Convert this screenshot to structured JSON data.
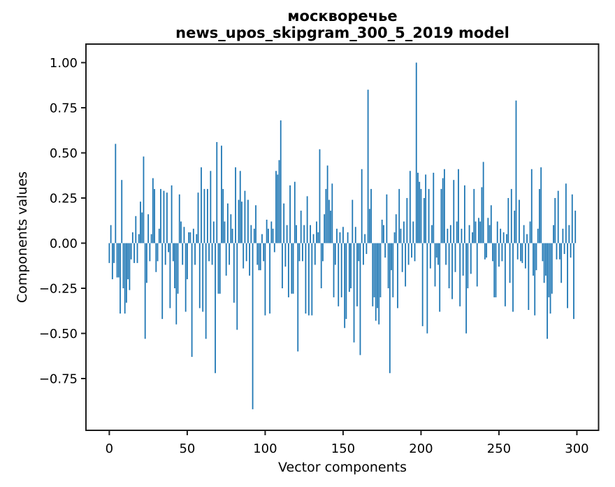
{
  "figure": {
    "title_line1": "москворечье",
    "title_line2": "news_upos_skipgram_300_5_2019 model",
    "xlabel": "Vector components",
    "ylabel": "Components values",
    "colors": {
      "bar": "#1f77b4",
      "spine": "#1c1c1c",
      "background": "#ffffff",
      "text": "#000000"
    }
  },
  "chart_data": {
    "type": "bar",
    "title": "москворечье — news_upos_skipgram_300_5_2019 model",
    "xlabel": "Vector components",
    "ylabel": "Components values",
    "legend": null,
    "grid": false,
    "n_components": 300,
    "xlim": [
      -15,
      314
    ],
    "ylim": [
      -1.04,
      1.1
    ],
    "x_ticks": [
      0,
      50,
      100,
      150,
      200,
      250,
      300
    ],
    "y_ticks": [
      1.0,
      0.75,
      0.5,
      0.25,
      0.0,
      -0.25,
      -0.5,
      -0.75
    ],
    "y_tick_labels": [
      "1.00",
      "0.75",
      "0.50",
      "0.25",
      "0.00",
      "−0.25",
      "−0.50",
      "−0.75"
    ],
    "bar_color": "#1f77b4",
    "values": [
      -0.11,
      0.1,
      -0.2,
      -0.11,
      0.55,
      -0.19,
      -0.19,
      -0.39,
      0.35,
      -0.25,
      -0.39,
      -0.33,
      -0.2,
      -0.26,
      -0.09,
      0.06,
      -0.11,
      0.15,
      -0.11,
      0.05,
      0.23,
      0.17,
      0.48,
      -0.53,
      -0.22,
      0.16,
      -0.1,
      0.05,
      0.36,
      0.3,
      -0.16,
      -0.1,
      0.08,
      0.3,
      -0.42,
      0.29,
      -0.12,
      0.28,
      -0.05,
      -0.36,
      0.32,
      -0.1,
      -0.25,
      -0.45,
      -0.28,
      0.27,
      0.12,
      -0.12,
      0.09,
      -0.38,
      -0.2,
      0.06,
      0.06,
      -0.63,
      0.08,
      -0.12,
      0.05,
      0.28,
      -0.36,
      0.42,
      -0.38,
      0.3,
      -0.53,
      0.3,
      -0.1,
      0.4,
      -0.12,
      0.12,
      -0.72,
      0.56,
      -0.28,
      -0.28,
      0.54,
      0.3,
      0.12,
      -0.18,
      0.22,
      -0.12,
      0.16,
      0.08,
      -0.33,
      0.42,
      -0.48,
      0.24,
      0.4,
      0.23,
      -0.14,
      0.29,
      -0.1,
      0.24,
      -0.18,
      0.1,
      -0.92,
      0.08,
      0.21,
      -0.12,
      -0.15,
      -0.15,
      0.05,
      -0.1,
      -0.4,
      0.13,
      0.08,
      -0.39,
      0.12,
      0.08,
      -0.05,
      0.4,
      0.38,
      0.46,
      0.68,
      -0.25,
      0.22,
      -0.13,
      0.1,
      -0.3,
      0.32,
      -0.28,
      -0.28,
      0.34,
      0.1,
      -0.6,
      -0.1,
      0.18,
      -0.1,
      0.1,
      -0.39,
      0.26,
      -0.4,
      0.1,
      -0.4,
      0.05,
      -0.12,
      0.12,
      0.06,
      0.52,
      -0.25,
      -0.1,
      0.16,
      0.3,
      0.43,
      0.24,
      0.18,
      0.33,
      -0.3,
      -0.12,
      0.08,
      -0.35,
      0.06,
      -0.3,
      0.09,
      -0.47,
      -0.42,
      0.06,
      -0.27,
      -0.25,
      0.24,
      -0.55,
      0.09,
      -0.35,
      -0.1,
      -0.62,
      0.41,
      -0.12,
      0.05,
      -0.06,
      0.85,
      0.19,
      0.3,
      -0.35,
      -0.3,
      -0.43,
      -0.36,
      -0.45,
      -0.3,
      0.13,
      0.1,
      -0.08,
      0.27,
      -0.25,
      -0.72,
      -0.15,
      -0.3,
      0.06,
      0.16,
      -0.36,
      0.3,
      0.08,
      -0.16,
      0.12,
      -0.24,
      0.25,
      -0.12,
      0.4,
      -0.08,
      0.12,
      -0.1,
      1.0,
      0.39,
      0.34,
      0.3,
      -0.46,
      0.25,
      0.38,
      -0.5,
      0.3,
      -0.14,
      0.1,
      0.39,
      -0.24,
      -0.08,
      -0.12,
      -0.38,
      0.3,
      0.36,
      0.41,
      -0.12,
      0.08,
      -0.25,
      0.1,
      -0.31,
      0.35,
      -0.16,
      0.12,
      0.41,
      -0.35,
      0.08,
      -0.18,
      0.32,
      -0.5,
      -0.25,
      0.1,
      -0.17,
      0.06,
      0.3,
      0.12,
      -0.24,
      0.14,
      0.12,
      0.31,
      0.45,
      -0.09,
      -0.08,
      0.14,
      0.1,
      0.21,
      -0.1,
      -0.3,
      -0.3,
      0.12,
      -0.13,
      0.08,
      -0.1,
      0.06,
      -0.35,
      0.05,
      0.25,
      -0.22,
      0.3,
      -0.38,
      0.18,
      0.79,
      -0.09,
      0.24,
      -0.1,
      -0.11,
      0.1,
      -0.14,
      0.05,
      -0.37,
      0.12,
      0.41,
      -0.18,
      -0.4,
      -0.15,
      0.08,
      0.3,
      0.42,
      -0.1,
      -0.22,
      -0.18,
      -0.53,
      -0.3,
      -0.39,
      -0.28,
      0.1,
      0.25,
      -0.09,
      0.29,
      -0.09,
      -0.22,
      0.08,
      -0.06,
      0.33,
      -0.36,
      0.1,
      -0.08,
      0.27,
      -0.42,
      0.18
    ]
  }
}
